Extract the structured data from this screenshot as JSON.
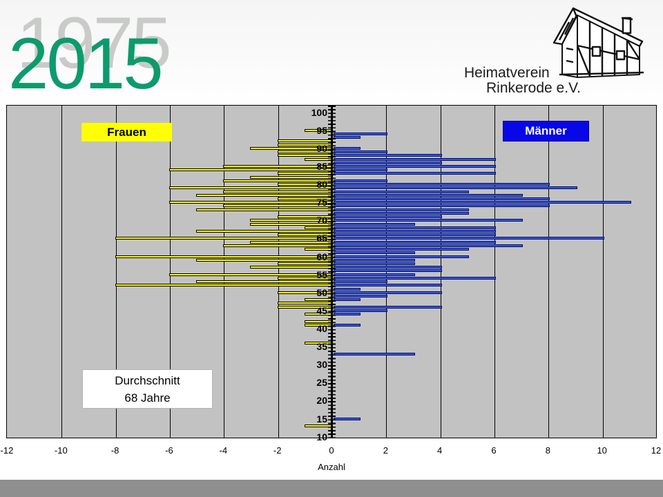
{
  "slide": {
    "year_back": "1975",
    "year_front": "2015",
    "year_back_color": "#c9cbc8",
    "year_front_color": "#0d9b6c",
    "logo": {
      "line1": "Heimatverein",
      "line2": "Rinkerode e.V."
    },
    "footer_band_color": "#8f8f8f"
  },
  "chart_data": {
    "type": "bar",
    "variant": "population-pyramid",
    "xlabel": "Anzahl",
    "xlim": [
      -12,
      12
    ],
    "x_ticks": [
      -12,
      -10,
      -8,
      -6,
      -4,
      -2,
      0,
      2,
      4,
      6,
      8,
      10,
      12
    ],
    "grid": "vertical-every-2-units",
    "plot_background": "#c2c2c2",
    "age_axis": {
      "min": 10,
      "max": 100,
      "label_step": 5,
      "labels": [
        100,
        95,
        90,
        85,
        80,
        75,
        70,
        65,
        60,
        55,
        50,
        45,
        40,
        35,
        30,
        25,
        20,
        15,
        10
      ]
    },
    "legend": [
      {
        "label": "Frauen",
        "side": "left",
        "box_color": "#ffff00",
        "text_color": "#000000",
        "bar_color": "#ffff00"
      },
      {
        "label": "Männer",
        "side": "right",
        "box_color": "#0707e8",
        "text_color": "#ffffff",
        "bar_color": "#3a57dd"
      }
    ],
    "annotation": {
      "lines": [
        "Durchschnitt",
        "68 Jahre"
      ]
    },
    "series": [
      {
        "name": "Frauen",
        "points": [
          {
            "age": 95,
            "value": 1
          },
          {
            "age": 92,
            "value": 2
          },
          {
            "age": 91,
            "value": 2
          },
          {
            "age": 90,
            "value": 3
          },
          {
            "age": 89,
            "value": 2
          },
          {
            "age": 88,
            "value": 2
          },
          {
            "age": 87,
            "value": 1
          },
          {
            "age": 85,
            "value": 4
          },
          {
            "age": 84,
            "value": 6
          },
          {
            "age": 83,
            "value": 2
          },
          {
            "age": 82,
            "value": 3
          },
          {
            "age": 81,
            "value": 4
          },
          {
            "age": 80,
            "value": 2
          },
          {
            "age": 79,
            "value": 6
          },
          {
            "age": 78,
            "value": 4
          },
          {
            "age": 77,
            "value": 5
          },
          {
            "age": 76,
            "value": 2
          },
          {
            "age": 75,
            "value": 6
          },
          {
            "age": 74,
            "value": 4
          },
          {
            "age": 73,
            "value": 5
          },
          {
            "age": 71,
            "value": 2
          },
          {
            "age": 70,
            "value": 3
          },
          {
            "age": 69,
            "value": 3
          },
          {
            "age": 68,
            "value": 1
          },
          {
            "age": 67,
            "value": 5
          },
          {
            "age": 66,
            "value": 2
          },
          {
            "age": 65,
            "value": 8
          },
          {
            "age": 64,
            "value": 3
          },
          {
            "age": 63,
            "value": 4
          },
          {
            "age": 62,
            "value": 1
          },
          {
            "age": 60,
            "value": 8
          },
          {
            "age": 59,
            "value": 5
          },
          {
            "age": 58,
            "value": 2
          },
          {
            "age": 57,
            "value": 3
          },
          {
            "age": 55,
            "value": 6
          },
          {
            "age": 54,
            "value": 2
          },
          {
            "age": 53,
            "value": 5
          },
          {
            "age": 52,
            "value": 8
          },
          {
            "age": 50,
            "value": 2
          },
          {
            "age": 48,
            "value": 1
          },
          {
            "age": 47,
            "value": 2
          },
          {
            "age": 46,
            "value": 2
          },
          {
            "age": 44,
            "value": 1
          },
          {
            "age": 42,
            "value": 1
          },
          {
            "age": 41,
            "value": 1
          },
          {
            "age": 36,
            "value": 1
          },
          {
            "age": 13,
            "value": 1
          }
        ]
      },
      {
        "name": "Männer",
        "points": [
          {
            "age": 94,
            "value": 2
          },
          {
            "age": 93,
            "value": 1
          },
          {
            "age": 90,
            "value": 1
          },
          {
            "age": 89,
            "value": 2
          },
          {
            "age": 88,
            "value": 4
          },
          {
            "age": 87,
            "value": 6
          },
          {
            "age": 86,
            "value": 4
          },
          {
            "age": 85,
            "value": 6
          },
          {
            "age": 84,
            "value": 2
          },
          {
            "age": 83,
            "value": 6
          },
          {
            "age": 81,
            "value": 2
          },
          {
            "age": 80,
            "value": 8
          },
          {
            "age": 79,
            "value": 9
          },
          {
            "age": 78,
            "value": 5
          },
          {
            "age": 77,
            "value": 7
          },
          {
            "age": 76,
            "value": 8
          },
          {
            "age": 75,
            "value": 11
          },
          {
            "age": 74,
            "value": 8
          },
          {
            "age": 73,
            "value": 5
          },
          {
            "age": 72,
            "value": 5
          },
          {
            "age": 71,
            "value": 4
          },
          {
            "age": 70,
            "value": 7
          },
          {
            "age": 69,
            "value": 3
          },
          {
            "age": 68,
            "value": 6
          },
          {
            "age": 67,
            "value": 6
          },
          {
            "age": 66,
            "value": 6
          },
          {
            "age": 65,
            "value": 10
          },
          {
            "age": 64,
            "value": 6
          },
          {
            "age": 63,
            "value": 7
          },
          {
            "age": 62,
            "value": 5
          },
          {
            "age": 61,
            "value": 3
          },
          {
            "age": 60,
            "value": 5
          },
          {
            "age": 59,
            "value": 3
          },
          {
            "age": 58,
            "value": 3
          },
          {
            "age": 57,
            "value": 4
          },
          {
            "age": 56,
            "value": 4
          },
          {
            "age": 55,
            "value": 3
          },
          {
            "age": 54,
            "value": 6
          },
          {
            "age": 53,
            "value": 2
          },
          {
            "age": 52,
            "value": 4
          },
          {
            "age": 51,
            "value": 1
          },
          {
            "age": 50,
            "value": 4
          },
          {
            "age": 49,
            "value": 2
          },
          {
            "age": 48,
            "value": 1
          },
          {
            "age": 46,
            "value": 4
          },
          {
            "age": 45,
            "value": 2
          },
          {
            "age": 44,
            "value": 1
          },
          {
            "age": 41,
            "value": 1
          },
          {
            "age": 33,
            "value": 3
          },
          {
            "age": 15,
            "value": 1
          }
        ]
      }
    ]
  }
}
